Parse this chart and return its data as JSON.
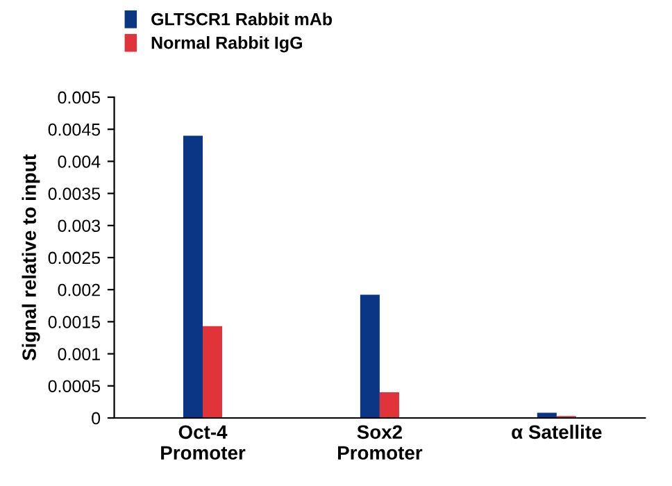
{
  "chart_data": {
    "type": "bar",
    "ylabel": "Signal relative to input",
    "categories": [
      "Oct-4\nPromoter",
      "Sox2\nPromoter",
      "α Satellite"
    ],
    "series": [
      {
        "name": "GLTSCR1 Rabbit mAb",
        "color": "#0b3585",
        "values": [
          0.0044,
          0.00192,
          8e-05
        ]
      },
      {
        "name": "Normal Rabbit IgG",
        "color": "#e0333a",
        "values": [
          0.00143,
          0.0004,
          3e-05
        ]
      }
    ],
    "ylim": [
      0,
      0.005
    ],
    "yticks": [
      0,
      0.0005,
      0.001,
      0.0015,
      0.002,
      0.0025,
      0.003,
      0.0035,
      0.004,
      0.0045,
      0.005
    ],
    "grid": false,
    "legend": "top left"
  }
}
